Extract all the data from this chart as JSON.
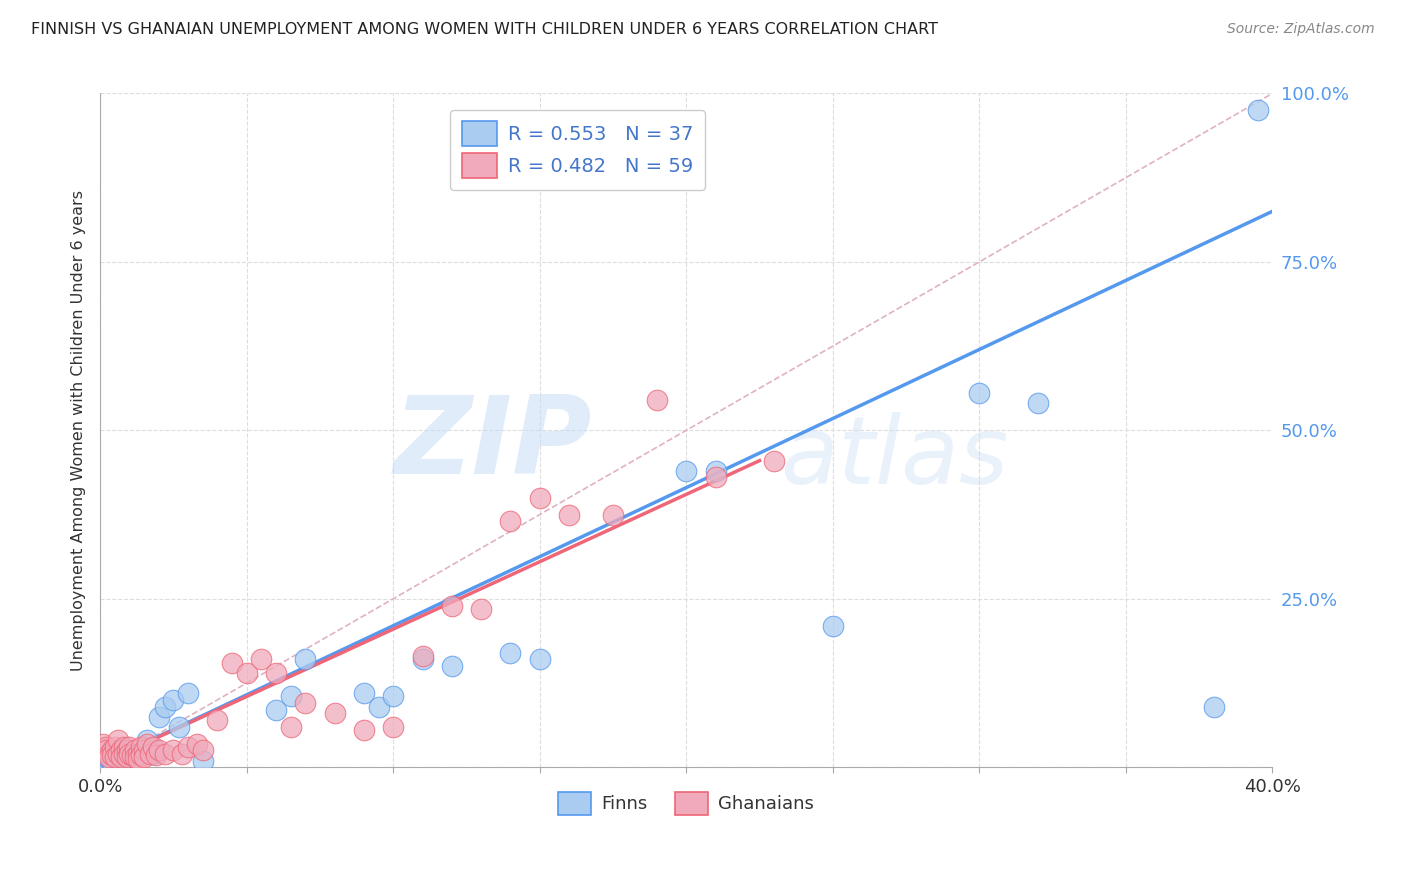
{
  "title": "FINNISH VS GHANAIAN UNEMPLOYMENT AMONG WOMEN WITH CHILDREN UNDER 6 YEARS CORRELATION CHART",
  "source": "Source: ZipAtlas.com",
  "ylabel": "Unemployment Among Women with Children Under 6 years",
  "xlim": [
    0.0,
    0.4
  ],
  "ylim": [
    0.0,
    1.0
  ],
  "ytick_labels": [
    "",
    "25.0%",
    "50.0%",
    "75.0%",
    "100.0%"
  ],
  "ytick_vals": [
    0.0,
    0.25,
    0.5,
    0.75,
    1.0
  ],
  "xtick_vals": [
    0.0,
    0.05,
    0.1,
    0.15,
    0.2,
    0.25,
    0.3,
    0.35,
    0.4
  ],
  "legend_finn_r": "R = 0.553",
  "legend_finn_n": "N = 37",
  "legend_ghana_r": "R = 0.482",
  "legend_ghana_n": "N = 59",
  "finn_color": "#aaccf0",
  "ghana_color": "#f0aabb",
  "finn_line_color": "#5599ee",
  "ghana_line_color": "#ee6677",
  "ref_line_color": "#ddaabb",
  "legend_text_color": "#4477cc",
  "background_color": "#ffffff",
  "finn_scatter_x": [
    0.001,
    0.002,
    0.003,
    0.004,
    0.005,
    0.006,
    0.007,
    0.008,
    0.01,
    0.012,
    0.013,
    0.015,
    0.016,
    0.018,
    0.02,
    0.022,
    0.025,
    0.027,
    0.03,
    0.035,
    0.06,
    0.065,
    0.07,
    0.09,
    0.095,
    0.1,
    0.11,
    0.12,
    0.14,
    0.15,
    0.2,
    0.21,
    0.25,
    0.3,
    0.32,
    0.38,
    0.395
  ],
  "finn_scatter_y": [
    0.01,
    0.015,
    0.012,
    0.008,
    0.02,
    0.018,
    0.01,
    0.025,
    0.015,
    0.02,
    0.018,
    0.03,
    0.04,
    0.02,
    0.075,
    0.09,
    0.1,
    0.06,
    0.11,
    0.01,
    0.085,
    0.105,
    0.16,
    0.11,
    0.09,
    0.105,
    0.16,
    0.15,
    0.17,
    0.16,
    0.44,
    0.44,
    0.21,
    0.555,
    0.54,
    0.09,
    0.975
  ],
  "ghana_scatter_x": [
    0.001,
    0.002,
    0.002,
    0.003,
    0.003,
    0.004,
    0.004,
    0.005,
    0.005,
    0.006,
    0.006,
    0.007,
    0.007,
    0.008,
    0.008,
    0.009,
    0.009,
    0.01,
    0.01,
    0.011,
    0.012,
    0.012,
    0.013,
    0.013,
    0.014,
    0.014,
    0.015,
    0.015,
    0.016,
    0.017,
    0.018,
    0.019,
    0.02,
    0.022,
    0.025,
    0.028,
    0.03,
    0.033,
    0.035,
    0.04,
    0.045,
    0.05,
    0.055,
    0.06,
    0.065,
    0.07,
    0.08,
    0.09,
    0.1,
    0.11,
    0.12,
    0.13,
    0.14,
    0.15,
    0.16,
    0.175,
    0.19,
    0.21,
    0.23
  ],
  "ghana_scatter_y": [
    0.035,
    0.03,
    0.025,
    0.02,
    0.015,
    0.025,
    0.018,
    0.03,
    0.015,
    0.04,
    0.02,
    0.025,
    0.015,
    0.03,
    0.02,
    0.025,
    0.015,
    0.03,
    0.02,
    0.018,
    0.025,
    0.015,
    0.02,
    0.012,
    0.03,
    0.018,
    0.025,
    0.015,
    0.035,
    0.02,
    0.03,
    0.018,
    0.025,
    0.02,
    0.025,
    0.02,
    0.03,
    0.035,
    0.025,
    0.07,
    0.155,
    0.14,
    0.16,
    0.14,
    0.06,
    0.095,
    0.08,
    0.055,
    0.06,
    0.165,
    0.24,
    0.235,
    0.365,
    0.4,
    0.375,
    0.375,
    0.545,
    0.43,
    0.455
  ],
  "finn_line_x": [
    0.0,
    0.4
  ],
  "finn_line_y": [
    0.005,
    0.825
  ],
  "ghana_line_x": [
    0.0,
    0.225
  ],
  "ghana_line_y": [
    0.005,
    0.455
  ],
  "ref_line_x": [
    0.0,
    0.4
  ],
  "ref_line_y": [
    0.0,
    1.0
  ]
}
